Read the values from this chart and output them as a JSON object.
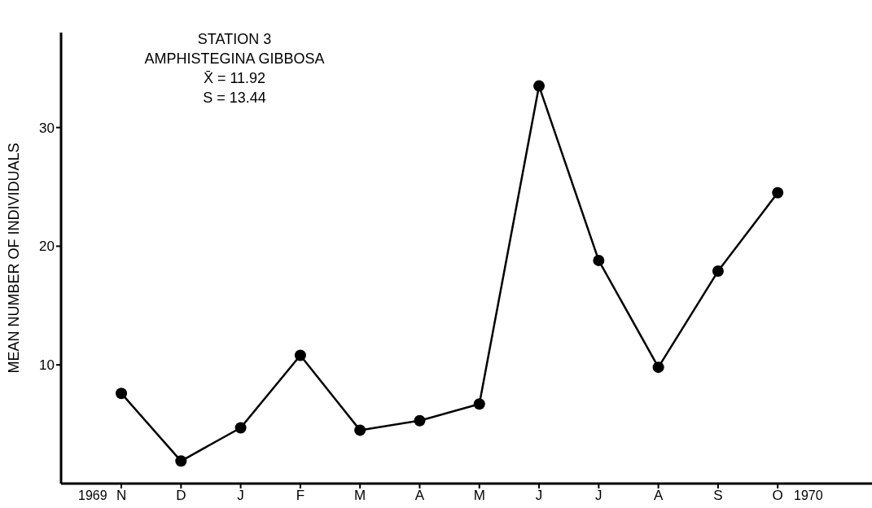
{
  "chart_data": {
    "type": "line",
    "title": "STATION 3",
    "subtitle": "AMPHISTEGINA GIBBOSA",
    "ylabel": "MEAN NUMBER OF INDIVIDUALS",
    "annotations": [
      "X̄ = 11.92",
      "S = 13.44",
      "1969",
      "1970"
    ],
    "categories": [
      "N",
      "D",
      "J",
      "F",
      "M",
      "A",
      "M",
      "J",
      "J",
      "A",
      "S",
      "O"
    ],
    "series": [
      {
        "color": "#000000",
        "values": [
          7.6,
          1.9,
          4.7,
          10.8,
          4.5,
          5.3,
          6.7,
          33.5,
          18.8,
          9.8,
          17.9,
          24.5
        ]
      }
    ],
    "ylim": [
      0,
      38
    ],
    "yticks": [
      10,
      20,
      30
    ],
    "grid": false,
    "legend": false,
    "marker": "circle",
    "line_style": "solid"
  }
}
